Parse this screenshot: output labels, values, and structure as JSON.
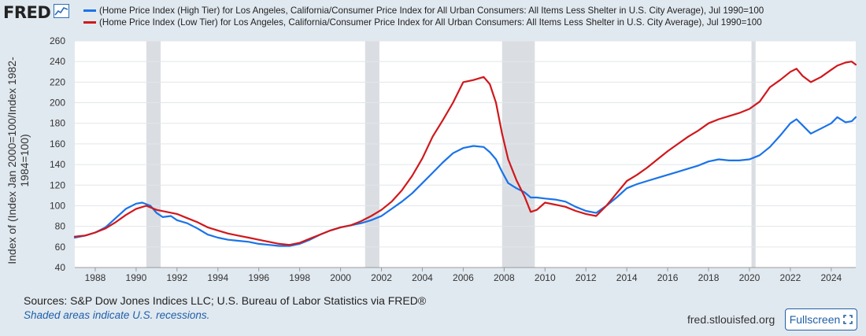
{
  "brand": {
    "name": "FRED"
  },
  "legend": [
    {
      "label": "(Home Price Index (High Tier) for Los Angeles, California/Consumer Price Index for All Urban Consumers: All Items Less Shelter in U.S. City Average), Jul 1990=100",
      "color": "#1a73e8"
    },
    {
      "label": "(Home Price Index (Low Tier) for Los Angeles, California/Consumer Price Index for All Urban Consumers: All Items Less Shelter in U.S. City Average), Jul 1990=100",
      "color": "#d0181c"
    }
  ],
  "footer": {
    "sources": "Sources: S&P Dow Jones Indices LLC; U.S. Bureau of Labor Statistics via FRED®",
    "shaded_note": "Shaded areas indicate U.S. recessions.",
    "site": "fred.stlouisfed.org",
    "fullscreen_label": "Fullscreen"
  },
  "chart_data": {
    "type": "line",
    "ylabel": "Index of (Index Jan 2000=100/Index 1982-1984=100)",
    "xlim": [
      1987.0,
      2025.2
    ],
    "ylim": [
      40,
      260
    ],
    "x_ticks": [
      "1988",
      "1990",
      "1992",
      "1994",
      "1996",
      "1998",
      "2000",
      "2002",
      "2004",
      "2006",
      "2008",
      "2010",
      "2012",
      "2014",
      "2016",
      "2018",
      "2020",
      "2022",
      "2024"
    ],
    "y_ticks": [
      "40",
      "60",
      "80",
      "100",
      "120",
      "140",
      "160",
      "180",
      "200",
      "220",
      "240",
      "260"
    ],
    "grid": "horizontal",
    "recessions": [
      [
        1990.5,
        1991.2
      ],
      [
        2001.2,
        2001.9
      ],
      [
        2007.9,
        2009.5
      ],
      [
        2020.1,
        2020.3
      ]
    ],
    "series": [
      {
        "name": "(Home Price Index (High Tier) for Los Angeles, California/Consumer Price Index for All Urban Consumers: All Items Less Shelter in U.S. City Average), Jul 1990=100",
        "color": "#1a73e8",
        "points": [
          [
            1987.0,
            69
          ],
          [
            1987.5,
            71
          ],
          [
            1988.0,
            74
          ],
          [
            1988.5,
            79
          ],
          [
            1989.0,
            88
          ],
          [
            1989.5,
            97
          ],
          [
            1990.0,
            102
          ],
          [
            1990.3,
            103
          ],
          [
            1990.7,
            100
          ],
          [
            1991.0,
            93
          ],
          [
            1991.3,
            89
          ],
          [
            1991.7,
            90
          ],
          [
            1992.0,
            86
          ],
          [
            1992.5,
            83
          ],
          [
            1993.0,
            78
          ],
          [
            1993.5,
            72
          ],
          [
            1994.0,
            69
          ],
          [
            1994.5,
            67
          ],
          [
            1995.0,
            66
          ],
          [
            1995.5,
            65
          ],
          [
            1996.0,
            63
          ],
          [
            1996.5,
            62
          ],
          [
            1997.0,
            61
          ],
          [
            1997.5,
            61
          ],
          [
            1998.0,
            63
          ],
          [
            1998.5,
            67
          ],
          [
            1999.0,
            72
          ],
          [
            1999.5,
            76
          ],
          [
            2000.0,
            79
          ],
          [
            2000.5,
            81
          ],
          [
            2001.0,
            83
          ],
          [
            2001.5,
            86
          ],
          [
            2002.0,
            90
          ],
          [
            2002.5,
            97
          ],
          [
            2003.0,
            104
          ],
          [
            2003.5,
            112
          ],
          [
            2004.0,
            122
          ],
          [
            2004.5,
            132
          ],
          [
            2005.0,
            142
          ],
          [
            2005.5,
            151
          ],
          [
            2006.0,
            156
          ],
          [
            2006.5,
            158
          ],
          [
            2007.0,
            157
          ],
          [
            2007.3,
            152
          ],
          [
            2007.6,
            145
          ],
          [
            2007.9,
            133
          ],
          [
            2008.2,
            122
          ],
          [
            2008.6,
            117
          ],
          [
            2009.0,
            113
          ],
          [
            2009.3,
            108
          ],
          [
            2009.6,
            108
          ],
          [
            2010.0,
            107
          ],
          [
            2010.5,
            106
          ],
          [
            2011.0,
            104
          ],
          [
            2011.5,
            99
          ],
          [
            2012.0,
            95
          ],
          [
            2012.5,
            93
          ],
          [
            2013.0,
            100
          ],
          [
            2013.5,
            108
          ],
          [
            2014.0,
            117
          ],
          [
            2014.5,
            121
          ],
          [
            2015.0,
            124
          ],
          [
            2015.5,
            127
          ],
          [
            2016.0,
            130
          ],
          [
            2016.5,
            133
          ],
          [
            2017.0,
            136
          ],
          [
            2017.5,
            139
          ],
          [
            2018.0,
            143
          ],
          [
            2018.5,
            145
          ],
          [
            2019.0,
            144
          ],
          [
            2019.5,
            144
          ],
          [
            2020.0,
            145
          ],
          [
            2020.5,
            149
          ],
          [
            2021.0,
            157
          ],
          [
            2021.5,
            168
          ],
          [
            2022.0,
            180
          ],
          [
            2022.3,
            184
          ],
          [
            2022.6,
            178
          ],
          [
            2023.0,
            170
          ],
          [
            2023.5,
            175
          ],
          [
            2024.0,
            180
          ],
          [
            2024.3,
            186
          ],
          [
            2024.7,
            181
          ],
          [
            2025.0,
            182
          ],
          [
            2025.2,
            186
          ]
        ]
      },
      {
        "name": "(Home Price Index (Low Tier) for Los Angeles, California/Consumer Price Index for All Urban Consumers: All Items Less Shelter in U.S. City Average), Jul 1990=100",
        "color": "#d0181c",
        "points": [
          [
            1987.0,
            70
          ],
          [
            1987.5,
            71
          ],
          [
            1988.0,
            74
          ],
          [
            1988.5,
            78
          ],
          [
            1989.0,
            84
          ],
          [
            1989.5,
            91
          ],
          [
            1990.0,
            97
          ],
          [
            1990.5,
            100
          ],
          [
            1991.0,
            96
          ],
          [
            1991.5,
            94
          ],
          [
            1992.0,
            92
          ],
          [
            1992.5,
            88
          ],
          [
            1993.0,
            84
          ],
          [
            1993.5,
            79
          ],
          [
            1994.0,
            76
          ],
          [
            1994.5,
            73
          ],
          [
            1995.0,
            71
          ],
          [
            1995.5,
            69
          ],
          [
            1996.0,
            67
          ],
          [
            1996.5,
            65
          ],
          [
            1997.0,
            63
          ],
          [
            1997.5,
            62
          ],
          [
            1998.0,
            64
          ],
          [
            1998.5,
            68
          ],
          [
            1999.0,
            72
          ],
          [
            1999.5,
            76
          ],
          [
            2000.0,
            79
          ],
          [
            2000.5,
            81
          ],
          [
            2001.0,
            85
          ],
          [
            2001.5,
            90
          ],
          [
            2002.0,
            96
          ],
          [
            2002.5,
            104
          ],
          [
            2003.0,
            115
          ],
          [
            2003.5,
            129
          ],
          [
            2004.0,
            146
          ],
          [
            2004.5,
            167
          ],
          [
            2005.0,
            183
          ],
          [
            2005.5,
            200
          ],
          [
            2006.0,
            220
          ],
          [
            2006.5,
            222
          ],
          [
            2007.0,
            225
          ],
          [
            2007.3,
            218
          ],
          [
            2007.6,
            200
          ],
          [
            2007.9,
            170
          ],
          [
            2008.2,
            145
          ],
          [
            2008.6,
            125
          ],
          [
            2009.0,
            109
          ],
          [
            2009.3,
            94
          ],
          [
            2009.6,
            96
          ],
          [
            2010.0,
            103
          ],
          [
            2010.5,
            101
          ],
          [
            2011.0,
            99
          ],
          [
            2011.5,
            95
          ],
          [
            2012.0,
            92
          ],
          [
            2012.5,
            90
          ],
          [
            2013.0,
            100
          ],
          [
            2013.5,
            112
          ],
          [
            2014.0,
            124
          ],
          [
            2014.5,
            130
          ],
          [
            2015.0,
            137
          ],
          [
            2015.5,
            145
          ],
          [
            2016.0,
            153
          ],
          [
            2016.5,
            160
          ],
          [
            2017.0,
            167
          ],
          [
            2017.5,
            173
          ],
          [
            2018.0,
            180
          ],
          [
            2018.5,
            184
          ],
          [
            2019.0,
            187
          ],
          [
            2019.5,
            190
          ],
          [
            2020.0,
            194
          ],
          [
            2020.5,
            201
          ],
          [
            2021.0,
            215
          ],
          [
            2021.5,
            222
          ],
          [
            2022.0,
            230
          ],
          [
            2022.3,
            233
          ],
          [
            2022.6,
            226
          ],
          [
            2023.0,
            220
          ],
          [
            2023.5,
            225
          ],
          [
            2024.0,
            232
          ],
          [
            2024.3,
            236
          ],
          [
            2024.7,
            239
          ],
          [
            2025.0,
            240
          ],
          [
            2025.2,
            237
          ]
        ]
      }
    ]
  }
}
